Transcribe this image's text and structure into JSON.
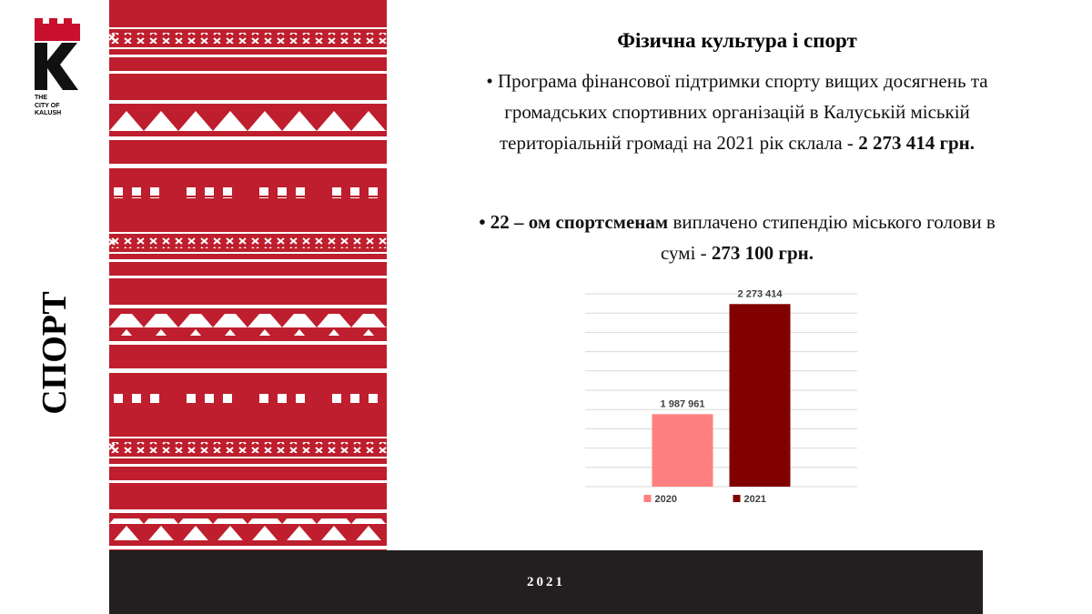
{
  "logo": {
    "lines": [
      "THE",
      "CITY OF",
      "KALUSH"
    ]
  },
  "side_title": "СПОРТ",
  "heading": "Фізична культура і спорт",
  "bullets": [
    {
      "text": "• Програма фінансової підтримки спорту вищих досягнень та громадських спортивних організацій в Калуській міській територіальній громаді на 2021 рік склала - ",
      "bold": "2 273 414 грн."
    },
    {
      "bold_lead": "• 22 – ом спортсменам",
      "text": " виплачено стипендію міського голови в сумі - ",
      "bold": "273 100 грн."
    }
  ],
  "footer": "2021",
  "chart_data": {
    "type": "bar",
    "categories": [
      "2020",
      "2021"
    ],
    "series": [
      {
        "name": "2020",
        "color": "#ff8080",
        "values": [
          1987961,
          null
        ]
      },
      {
        "name": "2021",
        "color": "#800000",
        "values": [
          null,
          2273414
        ]
      }
    ],
    "value_labels": [
      "1 987 961",
      "2 273 414"
    ],
    "ylim": [
      1800000,
      2300000
    ],
    "yticks": [
      1800000,
      1850000,
      1900000,
      1950000,
      2000000,
      2050000,
      2100000,
      2150000,
      2200000,
      2250000,
      2300000
    ],
    "grid": true,
    "legend": "bottom"
  }
}
